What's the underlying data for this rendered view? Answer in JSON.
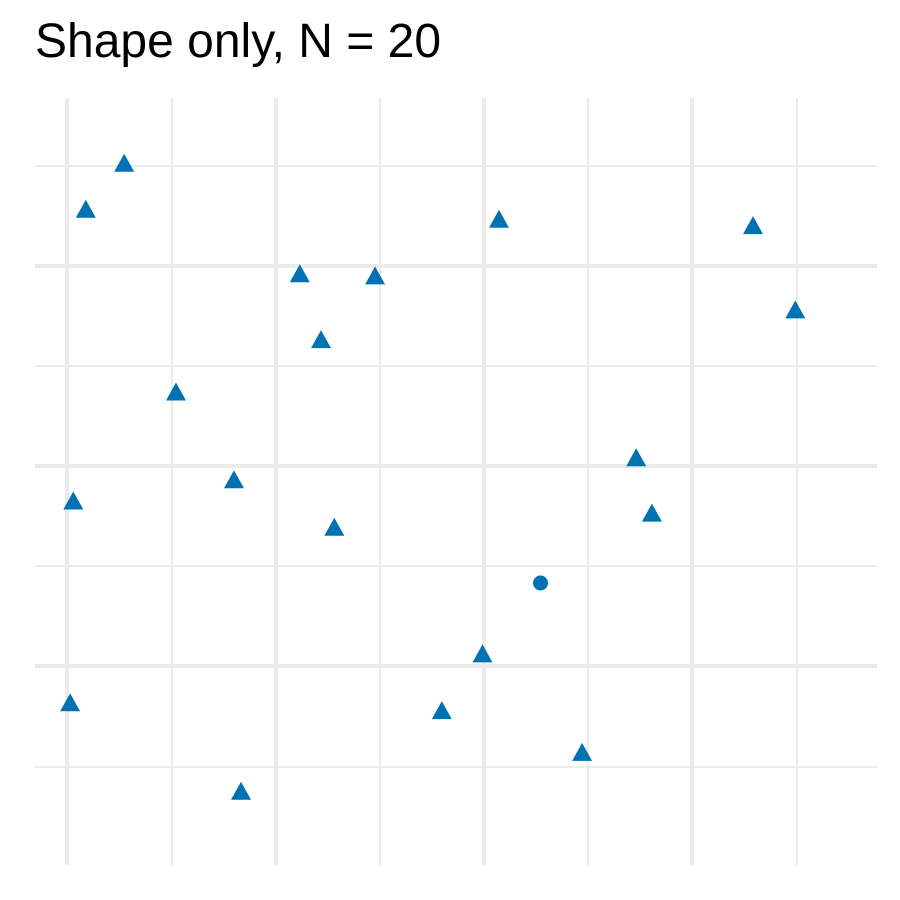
{
  "chart_data": {
    "type": "scatter",
    "title": "Shape only, N = 20",
    "xlabel": "",
    "ylabel": "",
    "xlim": [
      0,
      1
    ],
    "ylim": [
      0,
      1
    ],
    "grid": true,
    "axis_text": false,
    "legend": "none",
    "marker_color": "#0072B2",
    "grid_color": "#EBEBEB",
    "points": [
      {
        "x": 0.073,
        "y": 0.937,
        "shape": "triangle"
      },
      {
        "x": 0.024,
        "y": 0.872,
        "shape": "triangle"
      },
      {
        "x": 0.551,
        "y": 0.858,
        "shape": "triangle"
      },
      {
        "x": 0.875,
        "y": 0.849,
        "shape": "triangle"
      },
      {
        "x": 0.297,
        "y": 0.781,
        "shape": "triangle"
      },
      {
        "x": 0.393,
        "y": 0.778,
        "shape": "triangle"
      },
      {
        "x": 0.929,
        "y": 0.73,
        "shape": "triangle"
      },
      {
        "x": 0.324,
        "y": 0.688,
        "shape": "triangle"
      },
      {
        "x": 0.139,
        "y": 0.614,
        "shape": "triangle"
      },
      {
        "x": 0.726,
        "y": 0.521,
        "shape": "triangle"
      },
      {
        "x": 0.213,
        "y": 0.49,
        "shape": "triangle"
      },
      {
        "x": 0.008,
        "y": 0.46,
        "shape": "triangle"
      },
      {
        "x": 0.746,
        "y": 0.443,
        "shape": "triangle"
      },
      {
        "x": 0.341,
        "y": 0.423,
        "shape": "triangle"
      },
      {
        "x": 0.604,
        "y": 0.346,
        "shape": "circle"
      },
      {
        "x": 0.53,
        "y": 0.244,
        "shape": "triangle"
      },
      {
        "x": 0.004,
        "y": 0.175,
        "shape": "triangle"
      },
      {
        "x": 0.478,
        "y": 0.164,
        "shape": "triangle"
      },
      {
        "x": 0.657,
        "y": 0.105,
        "shape": "triangle"
      },
      {
        "x": 0.222,
        "y": 0.05,
        "shape": "triangle"
      }
    ]
  }
}
